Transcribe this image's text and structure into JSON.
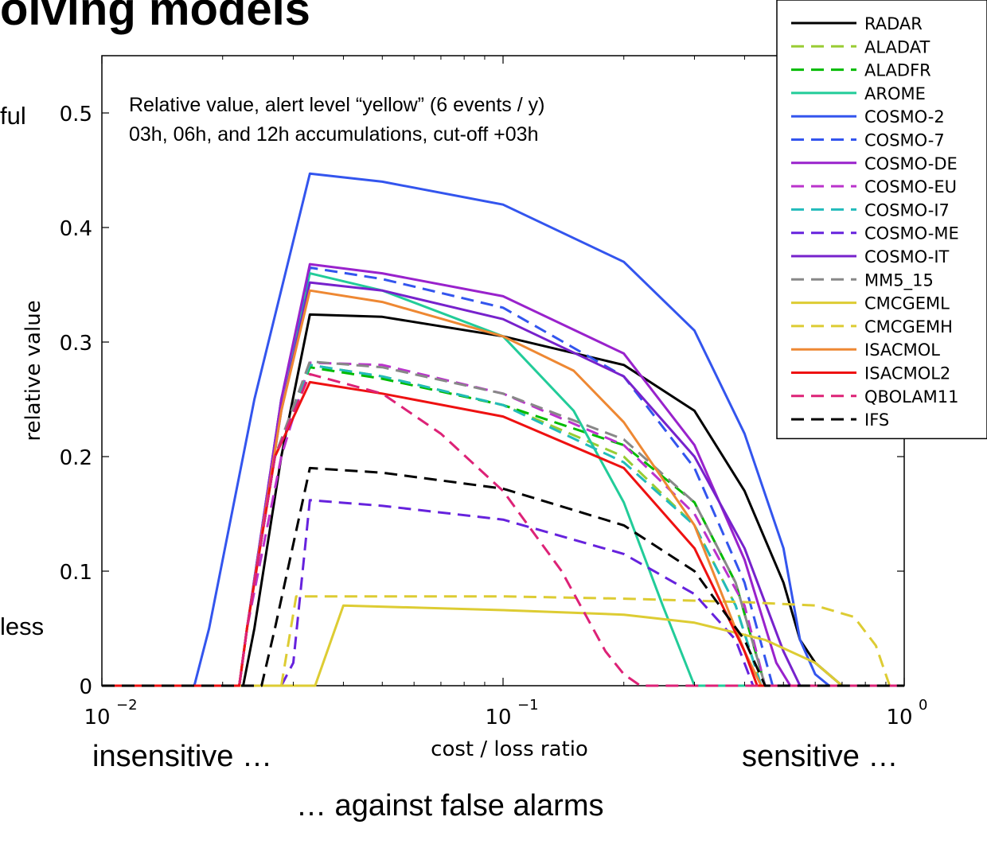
{
  "slide": {
    "title": "olving models",
    "side_top": "ful",
    "side_bottom": "less",
    "bottom_left": "insensitive …",
    "bottom_right": "sensitive …",
    "bottom_center": "… against false alarms"
  },
  "chart_data": {
    "type": "line",
    "annotation_lines": [
      "Relative value, alert level “yellow” (6 events / y)",
      "03h, 06h, and 12h accumulations, cut-off +03h"
    ],
    "xlabel": "cost / loss ratio",
    "ylabel": "relative value",
    "xscale": "log",
    "xlim": [
      0.01,
      1
    ],
    "ylim": [
      0,
      0.55
    ],
    "x_ticks": [
      {
        "base": "10",
        "exp": "−2",
        "value": 0.01
      },
      {
        "base": "10",
        "exp": "−1",
        "value": 0.1
      },
      {
        "base": "10",
        "exp": "0",
        "value": 1
      }
    ],
    "y_ticks": [
      "0",
      "0.1",
      "0.2",
      "0.3",
      "0.4",
      "0.5"
    ],
    "y_tick_values": [
      0,
      0.1,
      0.2,
      0.3,
      0.4,
      0.5
    ],
    "legend_position": "top-right",
    "series": [
      {
        "name": "RADAR",
        "color": "#000000",
        "dash": "solid",
        "points": [
          [
            0.01,
            0
          ],
          [
            0.0225,
            0
          ],
          [
            0.024,
            0.05
          ],
          [
            0.028,
            0.2
          ],
          [
            0.033,
            0.324
          ],
          [
            0.05,
            0.322
          ],
          [
            0.1,
            0.305
          ],
          [
            0.2,
            0.28
          ],
          [
            0.3,
            0.24
          ],
          [
            0.4,
            0.17
          ],
          [
            0.5,
            0.09
          ],
          [
            0.55,
            0.04
          ],
          [
            0.6,
            0.02
          ],
          [
            0.7,
            0
          ],
          [
            1,
            0
          ]
        ]
      },
      {
        "name": "ALADAT",
        "color": "#99cc33",
        "dash": "dashed",
        "points": [
          [
            0.01,
            0
          ],
          [
            0.022,
            0
          ],
          [
            0.023,
            0.05
          ],
          [
            0.027,
            0.2
          ],
          [
            0.033,
            0.28
          ],
          [
            0.05,
            0.27
          ],
          [
            0.1,
            0.245
          ],
          [
            0.2,
            0.2
          ],
          [
            0.3,
            0.14
          ],
          [
            0.38,
            0.07
          ],
          [
            0.44,
            0
          ],
          [
            1,
            0
          ]
        ]
      },
      {
        "name": "ALADFR",
        "color": "#00bb00",
        "dash": "dashed",
        "points": [
          [
            0.01,
            0
          ],
          [
            0.022,
            0
          ],
          [
            0.023,
            0.05
          ],
          [
            0.027,
            0.2
          ],
          [
            0.033,
            0.278
          ],
          [
            0.05,
            0.268
          ],
          [
            0.1,
            0.245
          ],
          [
            0.2,
            0.21
          ],
          [
            0.3,
            0.16
          ],
          [
            0.38,
            0.09
          ],
          [
            0.45,
            0
          ],
          [
            1,
            0
          ]
        ]
      },
      {
        "name": "AROME",
        "color": "#22cc99",
        "dash": "solid",
        "points": [
          [
            0.01,
            0
          ],
          [
            0.022,
            0
          ],
          [
            0.023,
            0.05
          ],
          [
            0.028,
            0.25
          ],
          [
            0.033,
            0.36
          ],
          [
            0.05,
            0.345
          ],
          [
            0.1,
            0.305
          ],
          [
            0.15,
            0.24
          ],
          [
            0.2,
            0.16
          ],
          [
            0.25,
            0.07
          ],
          [
            0.3,
            0
          ],
          [
            1,
            0
          ]
        ]
      },
      {
        "name": "COSMO-2",
        "color": "#3355ee",
        "dash": "solid",
        "points": [
          [
            0.01,
            0
          ],
          [
            0.017,
            0
          ],
          [
            0.0185,
            0.05
          ],
          [
            0.024,
            0.25
          ],
          [
            0.033,
            0.447
          ],
          [
            0.05,
            0.44
          ],
          [
            0.1,
            0.42
          ],
          [
            0.2,
            0.37
          ],
          [
            0.3,
            0.31
          ],
          [
            0.4,
            0.22
          ],
          [
            0.5,
            0.12
          ],
          [
            0.55,
            0.04
          ],
          [
            0.6,
            0.01
          ],
          [
            0.65,
            0
          ],
          [
            1,
            0
          ]
        ]
      },
      {
        "name": "COSMO-7",
        "color": "#3355ee",
        "dash": "dashed",
        "points": [
          [
            0.01,
            0
          ],
          [
            0.022,
            0
          ],
          [
            0.023,
            0.05
          ],
          [
            0.028,
            0.25
          ],
          [
            0.033,
            0.365
          ],
          [
            0.05,
            0.355
          ],
          [
            0.1,
            0.33
          ],
          [
            0.2,
            0.27
          ],
          [
            0.3,
            0.19
          ],
          [
            0.4,
            0.09
          ],
          [
            0.47,
            0
          ],
          [
            1,
            0
          ]
        ]
      },
      {
        "name": "COSMO-DE",
        "color": "#9922cc",
        "dash": "solid",
        "points": [
          [
            0.01,
            0
          ],
          [
            0.022,
            0
          ],
          [
            0.023,
            0.05
          ],
          [
            0.028,
            0.25
          ],
          [
            0.033,
            0.368
          ],
          [
            0.05,
            0.36
          ],
          [
            0.1,
            0.34
          ],
          [
            0.2,
            0.29
          ],
          [
            0.3,
            0.21
          ],
          [
            0.4,
            0.11
          ],
          [
            0.48,
            0.02
          ],
          [
            0.52,
            0
          ],
          [
            1,
            0
          ]
        ]
      },
      {
        "name": "COSMO-EU",
        "color": "#bb33cc",
        "dash": "dashed",
        "points": [
          [
            0.01,
            0
          ],
          [
            0.022,
            0
          ],
          [
            0.023,
            0.05
          ],
          [
            0.028,
            0.2
          ],
          [
            0.033,
            0.282
          ],
          [
            0.05,
            0.28
          ],
          [
            0.1,
            0.255
          ],
          [
            0.2,
            0.21
          ],
          [
            0.3,
            0.15
          ],
          [
            0.4,
            0.07
          ],
          [
            0.45,
            0
          ],
          [
            1,
            0
          ]
        ]
      },
      {
        "name": "COSMO-I7",
        "color": "#22bbbb",
        "dash": "dashed",
        "points": [
          [
            0.01,
            0
          ],
          [
            0.022,
            0
          ],
          [
            0.023,
            0.05
          ],
          [
            0.027,
            0.2
          ],
          [
            0.033,
            0.28
          ],
          [
            0.05,
            0.27
          ],
          [
            0.1,
            0.245
          ],
          [
            0.2,
            0.195
          ],
          [
            0.3,
            0.14
          ],
          [
            0.38,
            0.07
          ],
          [
            0.44,
            0
          ],
          [
            1,
            0
          ]
        ]
      },
      {
        "name": "COSMO-ME",
        "color": "#6622dd",
        "dash": "dashed",
        "points": [
          [
            0.01,
            0
          ],
          [
            0.028,
            0
          ],
          [
            0.03,
            0.02
          ],
          [
            0.033,
            0.162
          ],
          [
            0.05,
            0.157
          ],
          [
            0.1,
            0.145
          ],
          [
            0.2,
            0.115
          ],
          [
            0.3,
            0.08
          ],
          [
            0.38,
            0.04
          ],
          [
            0.42,
            0
          ],
          [
            1,
            0
          ]
        ]
      },
      {
        "name": "COSMO-IT",
        "color": "#7722cc",
        "dash": "solid",
        "points": [
          [
            0.01,
            0
          ],
          [
            0.022,
            0
          ],
          [
            0.023,
            0.05
          ],
          [
            0.028,
            0.24
          ],
          [
            0.033,
            0.352
          ],
          [
            0.05,
            0.345
          ],
          [
            0.1,
            0.32
          ],
          [
            0.2,
            0.27
          ],
          [
            0.3,
            0.2
          ],
          [
            0.4,
            0.12
          ],
          [
            0.5,
            0.03
          ],
          [
            0.55,
            0
          ],
          [
            1,
            0
          ]
        ]
      },
      {
        "name": "MM5_15",
        "color": "#888888",
        "dash": "dashed",
        "points": [
          [
            0.01,
            0
          ],
          [
            0.022,
            0
          ],
          [
            0.023,
            0.05
          ],
          [
            0.027,
            0.2
          ],
          [
            0.033,
            0.283
          ],
          [
            0.05,
            0.278
          ],
          [
            0.1,
            0.255
          ],
          [
            0.2,
            0.215
          ],
          [
            0.3,
            0.16
          ],
          [
            0.38,
            0.09
          ],
          [
            0.45,
            0
          ],
          [
            1,
            0
          ]
        ]
      },
      {
        "name": "CMCGEML",
        "color": "#ddcc33",
        "dash": "solid",
        "points": [
          [
            0.01,
            0
          ],
          [
            0.034,
            0
          ],
          [
            0.04,
            0.07
          ],
          [
            0.1,
            0.066
          ],
          [
            0.2,
            0.062
          ],
          [
            0.3,
            0.055
          ],
          [
            0.45,
            0.04
          ],
          [
            0.6,
            0.02
          ],
          [
            0.7,
            0
          ],
          [
            1,
            0
          ]
        ]
      },
      {
        "name": "CMCGEMH",
        "color": "#ddcc33",
        "dash": "dashed",
        "points": [
          [
            0.01,
            0
          ],
          [
            0.028,
            0
          ],
          [
            0.0305,
            0.078
          ],
          [
            0.1,
            0.078
          ],
          [
            0.2,
            0.076
          ],
          [
            0.4,
            0.073
          ],
          [
            0.6,
            0.07
          ],
          [
            0.75,
            0.06
          ],
          [
            0.85,
            0.035
          ],
          [
            0.92,
            0
          ],
          [
            1,
            0
          ]
        ]
      },
      {
        "name": "ISACMOL",
        "color": "#ee8833",
        "dash": "solid",
        "points": [
          [
            0.01,
            0
          ],
          [
            0.022,
            0
          ],
          [
            0.023,
            0.05
          ],
          [
            0.028,
            0.24
          ],
          [
            0.033,
            0.345
          ],
          [
            0.05,
            0.335
          ],
          [
            0.1,
            0.305
          ],
          [
            0.15,
            0.275
          ],
          [
            0.2,
            0.23
          ],
          [
            0.3,
            0.14
          ],
          [
            0.4,
            0.03
          ],
          [
            0.44,
            0
          ],
          [
            1,
            0
          ]
        ]
      },
      {
        "name": "ISACMOL2",
        "color": "#ee1111",
        "dash": "solid",
        "points": [
          [
            0.01,
            0
          ],
          [
            0.022,
            0
          ],
          [
            0.023,
            0.05
          ],
          [
            0.027,
            0.2
          ],
          [
            0.033,
            0.265
          ],
          [
            0.05,
            0.255
          ],
          [
            0.1,
            0.235
          ],
          [
            0.2,
            0.19
          ],
          [
            0.3,
            0.12
          ],
          [
            0.4,
            0.03
          ],
          [
            0.43,
            0
          ],
          [
            1,
            0
          ]
        ]
      },
      {
        "name": "QBOLAM11",
        "color": "#dd2277",
        "dash": "dashed",
        "points": [
          [
            0.01,
            0
          ],
          [
            0.022,
            0
          ],
          [
            0.023,
            0.05
          ],
          [
            0.027,
            0.2
          ],
          [
            0.033,
            0.272
          ],
          [
            0.05,
            0.255
          ],
          [
            0.07,
            0.22
          ],
          [
            0.1,
            0.17
          ],
          [
            0.14,
            0.1
          ],
          [
            0.18,
            0.03
          ],
          [
            0.2,
            0.01
          ],
          [
            0.22,
            0
          ],
          [
            1,
            0
          ]
        ]
      },
      {
        "name": "IFS",
        "color": "#000000",
        "dash": "dashed",
        "points": [
          [
            0.01,
            0
          ],
          [
            0.025,
            0
          ],
          [
            0.027,
            0.05
          ],
          [
            0.033,
            0.19
          ],
          [
            0.05,
            0.186
          ],
          [
            0.1,
            0.172
          ],
          [
            0.2,
            0.14
          ],
          [
            0.3,
            0.1
          ],
          [
            0.4,
            0.04
          ],
          [
            0.45,
            0
          ],
          [
            1,
            0
          ]
        ]
      }
    ]
  }
}
